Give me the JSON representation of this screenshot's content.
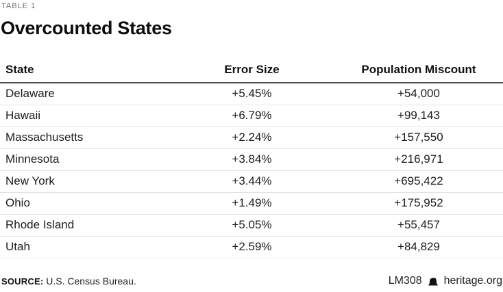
{
  "label": "TABLE 1",
  "title": "Overcounted States",
  "chart_data": {
    "type": "table",
    "title": "Overcounted States",
    "columns": [
      "State",
      "Error Size",
      "Population Miscount"
    ],
    "rows": [
      [
        "Delaware",
        "+5.45%",
        "+54,000"
      ],
      [
        "Hawaii",
        "+6.79%",
        "+99,143"
      ],
      [
        "Massachusetts",
        "+2.24%",
        "+157,550"
      ],
      [
        "Minnesota",
        "+3.84%",
        "+216,971"
      ],
      [
        "New York",
        "+3.44%",
        "+695,422"
      ],
      [
        "Ohio",
        "+1.49%",
        "+175,952"
      ],
      [
        "Rhode Island",
        "+5.05%",
        "+55,457"
      ],
      [
        "Utah",
        "+2.59%",
        "+84,829"
      ]
    ],
    "numeric": {
      "error_size_percent": [
        5.45,
        6.79,
        2.24,
        3.84,
        3.44,
        1.49,
        5.05,
        2.59
      ],
      "population_miscount": [
        54000,
        99143,
        157550,
        216971,
        695422,
        175952,
        55457,
        84829
      ]
    },
    "column_alignment": [
      "left",
      "center",
      "center"
    ]
  },
  "footer": {
    "source_label": "SOURCE:",
    "source_text": "U.S. Census Bureau.",
    "doc_id": "LM308",
    "site": "heritage.org",
    "logo": "liberty-bell-icon"
  },
  "colors": {
    "title": "#0d0d0d",
    "eyebrow_label": "#6e6e6e",
    "body_text": "#1c1c1c",
    "header_rule": "#4d4d4d",
    "row_rule": "#e3e3e3",
    "background": "#ffffff"
  }
}
